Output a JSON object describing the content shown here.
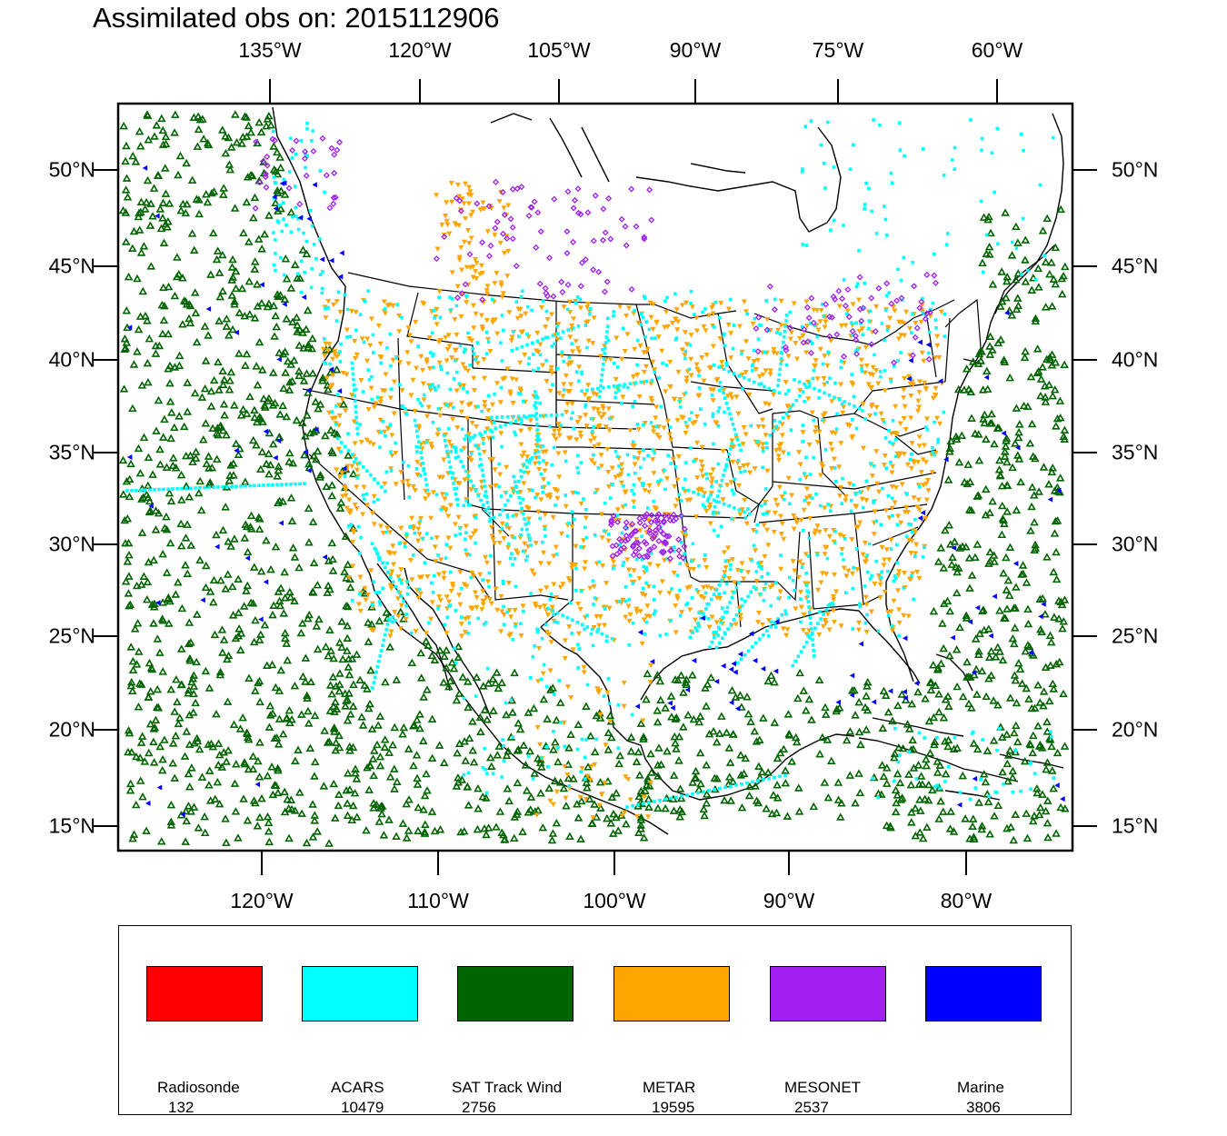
{
  "title": "Assimilated obs on: 2015112906",
  "top_axis_labels": [
    "135°W",
    "120°W",
    "105°W",
    "90°W",
    "75°W",
    "60°W"
  ],
  "bottom_axis_labels": [
    "120°W",
    "110°W",
    "100°W",
    "90°W",
    "80°W"
  ],
  "lat_labels": [
    "50°N",
    "45°N",
    "40°N",
    "35°N",
    "30°N",
    "25°N",
    "20°N",
    "15°N"
  ],
  "legend": [
    {
      "name": "Radiosonde",
      "count": "132",
      "color": "#ff0000"
    },
    {
      "name": "ACARS",
      "count": "10479",
      "color": "#00ffff"
    },
    {
      "name": "SAT Track Wind",
      "count": "2756",
      "color": "#006400"
    },
    {
      "name": "METAR",
      "count": "19595",
      "color": "#ffa500"
    },
    {
      "name": "MESONET",
      "count": "2537",
      "color": "#a020f0"
    },
    {
      "name": "Marine",
      "count": "3806",
      "color": "#0000ff"
    }
  ],
  "map": {
    "lat_range": [
      13.7,
      53.4
    ],
    "lon_range": [
      -128,
      -74
    ]
  }
}
